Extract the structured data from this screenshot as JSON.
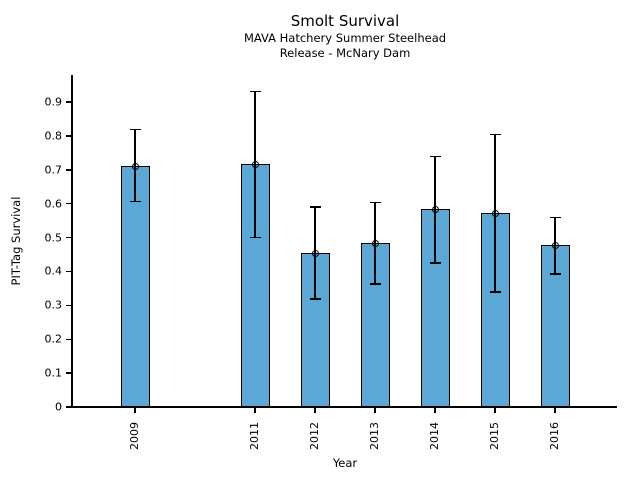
{
  "chart_data": {
    "type": "bar",
    "title": "Smolt Survival",
    "subtitle_line1": "MAVA Hatchery Summer Steelhead",
    "subtitle_line2": "Release - McNary Dam",
    "xlabel": "Year",
    "ylabel": "PIT-Tag Survival",
    "categories": [
      "2009",
      "2011",
      "2012",
      "2013",
      "2014",
      "2015",
      "2016"
    ],
    "x_numeric": [
      2009,
      2011,
      2012,
      2013,
      2014,
      2015,
      2016
    ],
    "values": [
      0.71,
      0.716,
      0.454,
      0.484,
      0.584,
      0.572,
      0.478
    ],
    "error_low": [
      0.607,
      0.501,
      0.319,
      0.363,
      0.425,
      0.34,
      0.393
    ],
    "error_high": [
      0.819,
      0.931,
      0.59,
      0.604,
      0.74,
      0.804,
      0.56
    ],
    "yticks": [
      0,
      0.1,
      0.2,
      0.3,
      0.4,
      0.5,
      0.6,
      0.7,
      0.8,
      0.9
    ],
    "ytick_labels": [
      "0",
      "0.1",
      "0.2",
      "0.3",
      "0.4",
      "0.5",
      "0.6",
      "0.7",
      "0.8",
      "0.9"
    ],
    "ylim": [
      0,
      0.98
    ],
    "xlim": [
      2007.95,
      2017.03
    ],
    "bar_color": "#5BA7D5",
    "bar_edge_color": "#000000",
    "error_color": "#000000",
    "marker": "open-circle",
    "grid": false,
    "legend": "none"
  }
}
